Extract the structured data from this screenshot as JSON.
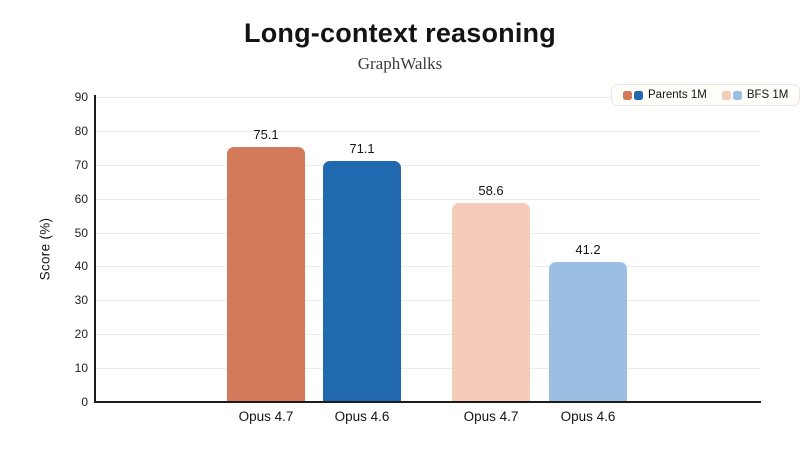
{
  "header": {
    "title": "Long-context reasoning",
    "subtitle": "GraphWalks"
  },
  "legend": {
    "items": [
      {
        "label": "Parents 1M",
        "swatch_colors": [
          "#d4795a",
          "#2069b0"
        ]
      },
      {
        "label": "BFS 1M",
        "swatch_colors": [
          "#f5cbb9",
          "#9bbfe2"
        ]
      }
    ]
  },
  "chart_data": {
    "type": "bar",
    "title": "Long-context reasoning",
    "subtitle": "GraphWalks",
    "categories": [
      "Opus 4.7",
      "Opus 4.6",
      "Opus 4.7",
      "Opus 4.6"
    ],
    "values": [
      75.1,
      71.1,
      58.6,
      41.2
    ],
    "value_labels": [
      "75.1",
      "71.1",
      "58.6",
      "41.2"
    ],
    "bar_colors": [
      "#d4795a",
      "#2069b0",
      "#f5cbb9",
      "#9bbfe2"
    ],
    "bar_series": [
      "Parents 1M",
      "Parents 1M",
      "BFS 1M",
      "BFS 1M"
    ],
    "xlabel": "",
    "ylabel": "Score (%)",
    "ylim": [
      0,
      90
    ],
    "yticks": [
      0,
      10,
      20,
      30,
      40,
      50,
      60,
      70,
      80,
      90
    ],
    "grid": true,
    "legend_position": "top-right"
  }
}
